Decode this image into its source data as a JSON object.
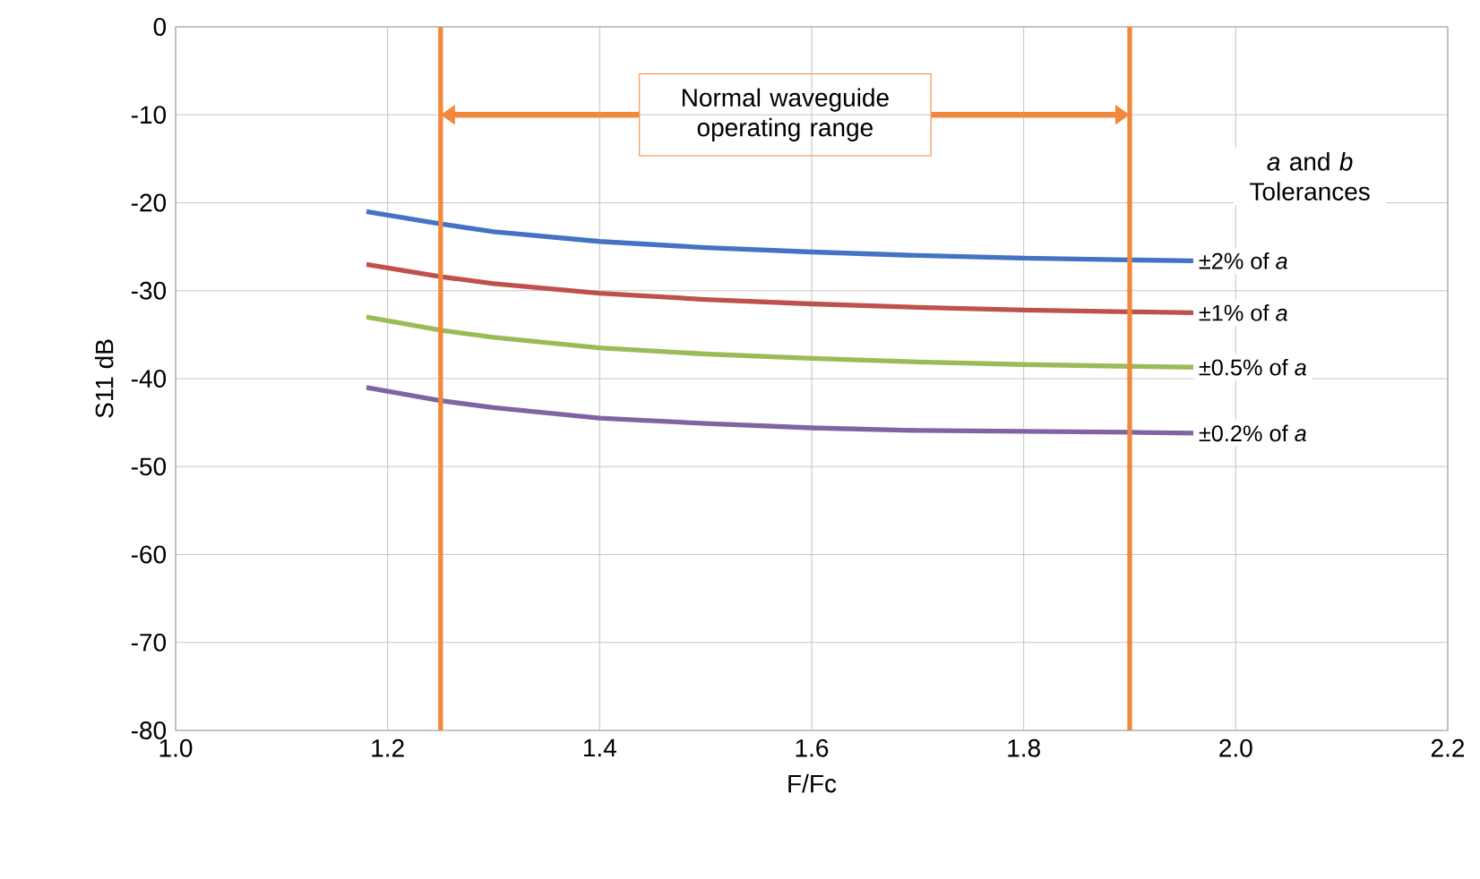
{
  "chart_data": {
    "type": "line",
    "xlabel": "F/Fc",
    "ylabel": "S11 dB",
    "legend_title": "*a* and *b* Tolerances",
    "xlim": [
      1.0,
      2.2
    ],
    "ylim": [
      -80,
      0
    ],
    "xticks": [
      {
        "value": 1.0,
        "label": "1.0"
      },
      {
        "value": 1.2,
        "label": "1.2"
      },
      {
        "value": 1.4,
        "label": "1.4"
      },
      {
        "value": 1.6,
        "label": "1.6"
      },
      {
        "value": 1.8,
        "label": "1.8"
      },
      {
        "value": 2.0,
        "label": "2.0"
      },
      {
        "value": 2.2,
        "label": "2.2"
      }
    ],
    "yticks": [
      0,
      -10,
      -20,
      -30,
      -40,
      -50,
      -60,
      -70,
      -80
    ],
    "grid": true,
    "legend": "right",
    "marker": "none",
    "line_style": "solid",
    "x": [
      1.18,
      1.25,
      1.3,
      1.4,
      1.5,
      1.6,
      1.7,
      1.8,
      1.9,
      1.96
    ],
    "series": [
      {
        "name": "±2% of *a*",
        "color": "#4472c4",
        "values": [
          -21,
          -22.4,
          -23.3,
          -24.4,
          -25.1,
          -25.6,
          -26.0,
          -26.3,
          -26.5,
          -26.6
        ]
      },
      {
        "name": "±1% of *a*",
        "color": "#c0504d",
        "values": [
          -27,
          -28.4,
          -29.2,
          -30.3,
          -31.0,
          -31.5,
          -31.9,
          -32.2,
          -32.4,
          -32.5
        ]
      },
      {
        "name": "±0.5% of *a*",
        "color": "#9bbb59",
        "values": [
          -33,
          -34.5,
          -35.3,
          -36.5,
          -37.2,
          -37.7,
          -38.1,
          -38.4,
          -38.6,
          -38.7
        ]
      },
      {
        "name": "±0.2% of *a*",
        "color": "#8064a2",
        "values": [
          -41,
          -42.5,
          -43.3,
          -44.5,
          -45.1,
          -45.6,
          -45.9,
          -46.0,
          -46.1,
          -46.2
        ]
      }
    ],
    "ref_lines": [
      {
        "axis": "x",
        "value": 1.25,
        "color": "#f0893c"
      },
      {
        "axis": "x",
        "value": 1.9,
        "color": "#f0893c"
      }
    ],
    "annotations": [
      "Normal waveguide operating range"
    ]
  }
}
